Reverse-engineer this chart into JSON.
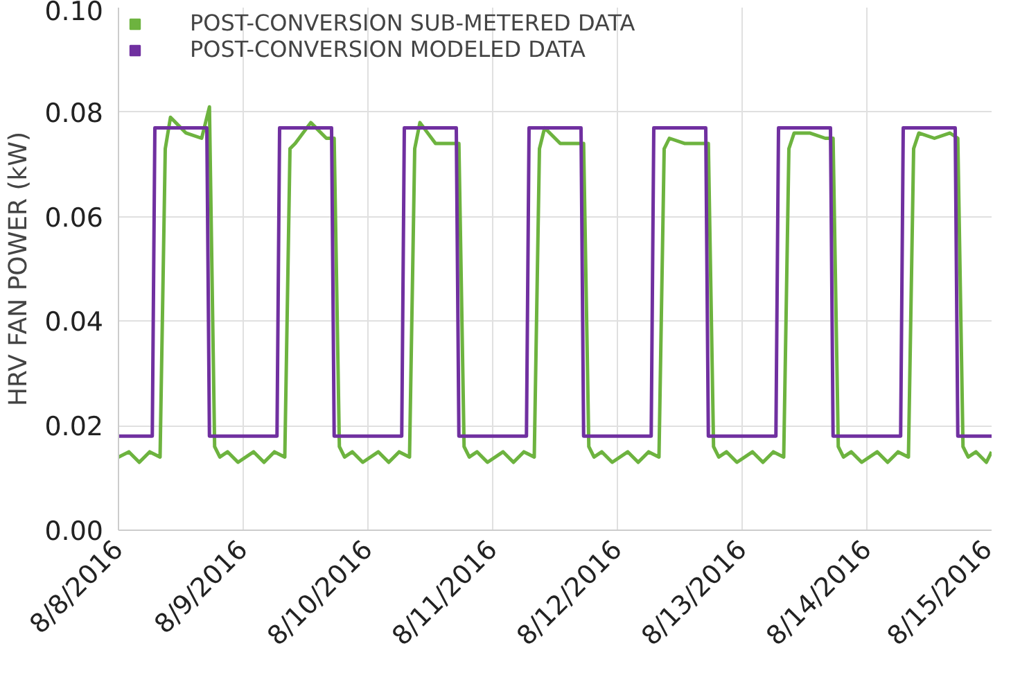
{
  "chart_data": {
    "type": "line",
    "ylabel": "HRV FAN POWER (kW)",
    "ylim": [
      0,
      0.1
    ],
    "yticks": [
      {
        "value": 0,
        "label": "0.00"
      },
      {
        "value": 0.02,
        "label": "0.02"
      },
      {
        "value": 0.04,
        "label": "0.04"
      },
      {
        "value": 0.06,
        "label": "0.06"
      },
      {
        "value": 0.08,
        "label": "0.08"
      },
      {
        "value": 0.1,
        "label": "0.10"
      }
    ],
    "xlim": [
      "2016-08-08",
      "2016-08-15"
    ],
    "xticks": [
      {
        "value": "2016-08-08",
        "label": "8/8/2016"
      },
      {
        "value": "2016-08-09",
        "label": "8/9/2016"
      },
      {
        "value": "2016-08-10",
        "label": "8/10/2016"
      },
      {
        "value": "2016-08-11",
        "label": "8/11/2016"
      },
      {
        "value": "2016-08-12",
        "label": "8/12/2016"
      },
      {
        "value": "2016-08-13",
        "label": "8/13/2016"
      },
      {
        "value": "2016-08-14",
        "label": "8/14/2016"
      },
      {
        "value": "2016-08-15",
        "label": "8/15/2016"
      }
    ],
    "grid": true,
    "legend": "top left",
    "marker": "none",
    "line_style": "solid",
    "series": [
      {
        "name": "POST-CONVERSION SUB-METERED DATA",
        "color": "#6db33f",
        "x": [
          "2016-08-08T00:00",
          "2016-08-08T02:00",
          "2016-08-08T04:00",
          "2016-08-08T06:00",
          "2016-08-08T08:00",
          "2016-08-08T09:00",
          "2016-08-08T10:00",
          "2016-08-08T13:00",
          "2016-08-08T16:00",
          "2016-08-08T17:30",
          "2016-08-08T18:30",
          "2016-08-08T19:30",
          "2016-08-08T21:00",
          "2016-08-08T23:00",
          "2016-08-09T02:00",
          "2016-08-09T04:00",
          "2016-08-09T06:00",
          "2016-08-09T08:00",
          "2016-08-09T09:00",
          "2016-08-09T10:00",
          "2016-08-09T13:00",
          "2016-08-09T16:00",
          "2016-08-09T17:30",
          "2016-08-09T18:30",
          "2016-08-09T19:30",
          "2016-08-09T21:00",
          "2016-08-09T23:00",
          "2016-08-10T02:00",
          "2016-08-10T04:00",
          "2016-08-10T06:00",
          "2016-08-10T08:00",
          "2016-08-10T09:00",
          "2016-08-10T10:00",
          "2016-08-10T13:00",
          "2016-08-10T16:00",
          "2016-08-10T17:30",
          "2016-08-10T18:30",
          "2016-08-10T19:30",
          "2016-08-10T21:00",
          "2016-08-10T23:00",
          "2016-08-11T02:00",
          "2016-08-11T04:00",
          "2016-08-11T06:00",
          "2016-08-11T08:00",
          "2016-08-11T09:00",
          "2016-08-11T10:00",
          "2016-08-11T13:00",
          "2016-08-11T16:00",
          "2016-08-11T17:30",
          "2016-08-11T18:30",
          "2016-08-11T19:30",
          "2016-08-11T21:00",
          "2016-08-11T23:00",
          "2016-08-12T02:00",
          "2016-08-12T04:00",
          "2016-08-12T06:00",
          "2016-08-12T08:00",
          "2016-08-12T09:00",
          "2016-08-12T10:00",
          "2016-08-12T13:00",
          "2016-08-12T16:00",
          "2016-08-12T17:30",
          "2016-08-12T18:30",
          "2016-08-12T19:30",
          "2016-08-12T21:00",
          "2016-08-12T23:00",
          "2016-08-13T02:00",
          "2016-08-13T04:00",
          "2016-08-13T06:00",
          "2016-08-13T08:00",
          "2016-08-13T09:00",
          "2016-08-13T10:00",
          "2016-08-13T13:00",
          "2016-08-13T16:00",
          "2016-08-13T17:30",
          "2016-08-13T18:30",
          "2016-08-13T19:30",
          "2016-08-13T21:00",
          "2016-08-13T23:00",
          "2016-08-14T02:00",
          "2016-08-14T04:00",
          "2016-08-14T06:00",
          "2016-08-14T08:00",
          "2016-08-14T09:00",
          "2016-08-14T10:00",
          "2016-08-14T13:00",
          "2016-08-14T16:00",
          "2016-08-14T17:30",
          "2016-08-14T18:30",
          "2016-08-14T19:30",
          "2016-08-14T21:00",
          "2016-08-14T23:00",
          "2016-08-15T00:00"
        ],
        "values": [
          0.014,
          0.015,
          0.013,
          0.015,
          0.014,
          0.073,
          0.079,
          0.076,
          0.075,
          0.081,
          0.016,
          0.014,
          0.015,
          0.013,
          0.015,
          0.013,
          0.015,
          0.014,
          0.073,
          0.074,
          0.078,
          0.075,
          0.075,
          0.016,
          0.014,
          0.015,
          0.013,
          0.015,
          0.013,
          0.015,
          0.014,
          0.073,
          0.078,
          0.074,
          0.074,
          0.074,
          0.016,
          0.014,
          0.015,
          0.013,
          0.015,
          0.013,
          0.015,
          0.014,
          0.073,
          0.077,
          0.074,
          0.074,
          0.074,
          0.016,
          0.014,
          0.015,
          0.013,
          0.015,
          0.013,
          0.015,
          0.014,
          0.073,
          0.075,
          0.074,
          0.074,
          0.074,
          0.016,
          0.014,
          0.015,
          0.013,
          0.015,
          0.013,
          0.015,
          0.014,
          0.073,
          0.076,
          0.076,
          0.075,
          0.075,
          0.016,
          0.014,
          0.015,
          0.013,
          0.015,
          0.013,
          0.015,
          0.014,
          0.073,
          0.076,
          0.075,
          0.076,
          0.075,
          0.016,
          0.014,
          0.015,
          0.013,
          0.015
        ]
      },
      {
        "name": "POST-CONVERSION MODELED DATA",
        "color": "#7030a0",
        "x": [
          "2016-08-08T00:00",
          "2016-08-08T06:30",
          "2016-08-08T07:00",
          "2016-08-08T17:00",
          "2016-08-08T17:30",
          "2016-08-09T06:30",
          "2016-08-09T07:00",
          "2016-08-09T17:00",
          "2016-08-09T17:30",
          "2016-08-10T06:30",
          "2016-08-10T07:00",
          "2016-08-10T17:00",
          "2016-08-10T17:30",
          "2016-08-11T06:30",
          "2016-08-11T07:00",
          "2016-08-11T17:00",
          "2016-08-11T17:30",
          "2016-08-12T06:30",
          "2016-08-12T07:00",
          "2016-08-12T17:00",
          "2016-08-12T17:30",
          "2016-08-13T06:30",
          "2016-08-13T07:00",
          "2016-08-13T17:00",
          "2016-08-13T17:30",
          "2016-08-14T06:30",
          "2016-08-14T07:00",
          "2016-08-14T17:00",
          "2016-08-14T17:30",
          "2016-08-15T00:00"
        ],
        "values": [
          0.018,
          0.018,
          0.077,
          0.077,
          0.018,
          0.018,
          0.077,
          0.077,
          0.018,
          0.018,
          0.077,
          0.077,
          0.018,
          0.018,
          0.077,
          0.077,
          0.018,
          0.018,
          0.077,
          0.077,
          0.018,
          0.018,
          0.077,
          0.077,
          0.018,
          0.018,
          0.077,
          0.077,
          0.018,
          0.018
        ]
      }
    ]
  }
}
